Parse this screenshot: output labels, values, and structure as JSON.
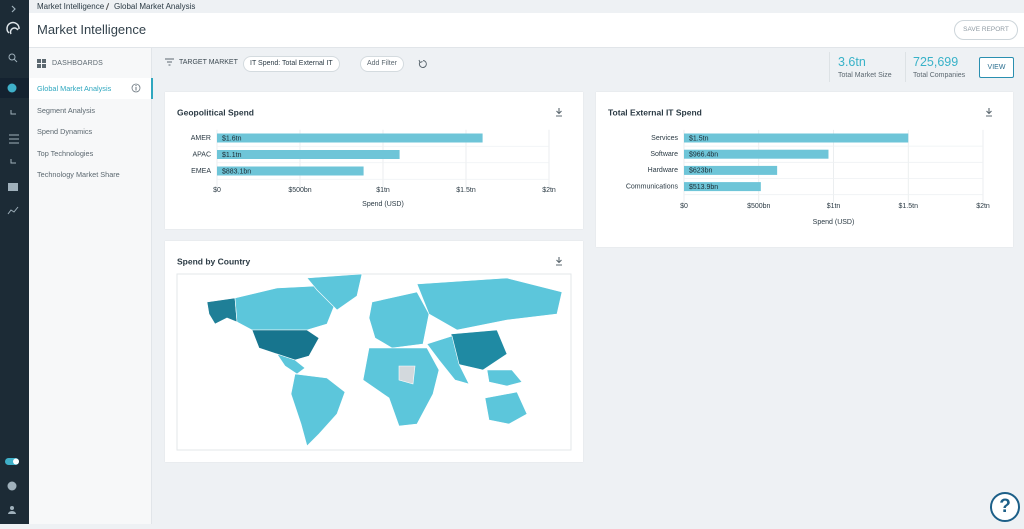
{
  "breadcrumb": [
    "Market Intelligence",
    "Global Market Analysis"
  ],
  "header": {
    "title": "Market Intelligence",
    "save_button": "SAVE REPORT"
  },
  "sidebar": {
    "heading": "DASHBOARDS",
    "items": [
      "Global Market Analysis",
      "Segment Analysis",
      "Spend Dynamics",
      "Top Technologies",
      "Technology Market Share"
    ]
  },
  "filters": {
    "label": "TARGET MARKET",
    "chip": "IT Spend: Total External IT",
    "add": "Add Filter"
  },
  "stats": [
    {
      "value": "3.6tn",
      "label": "Total Market Size"
    },
    {
      "value": "725,699",
      "label": "Total Companies"
    }
  ],
  "view_button": "VIEW",
  "help_button": "?",
  "chart_data": [
    {
      "type": "bar",
      "orientation": "horizontal",
      "title": "Geopolitical Spend",
      "categories": [
        "AMER",
        "APAC",
        "EMEA"
      ],
      "values": [
        1600000000000,
        1100000000000,
        883100000000
      ],
      "value_labels": [
        "$1.6tn",
        "$1.1tn",
        "$883.1bn"
      ],
      "color": "#6ec5d8",
      "xlabel": "Spend (USD)",
      "xlim": [
        0,
        2000000000000
      ],
      "xticks": [
        {
          "value": 0,
          "label": "$0"
        },
        {
          "value": 500000000000,
          "label": "$500bn"
        },
        {
          "value": 1000000000000,
          "label": "$1tn"
        },
        {
          "value": 1500000000000,
          "label": "$1.5tn"
        },
        {
          "value": 2000000000000,
          "label": "$2tn"
        }
      ],
      "grid": true
    },
    {
      "type": "bar",
      "orientation": "horizontal",
      "title": "Total External IT Spend",
      "categories": [
        "Services",
        "Software",
        "Hardware",
        "Communications"
      ],
      "values": [
        1500000000000,
        966400000000,
        623000000000,
        513900000000
      ],
      "value_labels": [
        "$1.5tn",
        "$966.4bn",
        "$623bn",
        "$513.9bn"
      ],
      "color": "#6ec5d8",
      "xlabel": "Spend (USD)",
      "xlim": [
        0,
        2000000000000
      ],
      "xticks": [
        {
          "value": 0,
          "label": "$0"
        },
        {
          "value": 500000000000,
          "label": "$500bn"
        },
        {
          "value": 1000000000000,
          "label": "$1tn"
        },
        {
          "value": 1500000000000,
          "label": "$1.5tn"
        },
        {
          "value": 2000000000000,
          "label": "$2tn"
        }
      ],
      "grid": true
    },
    {
      "type": "map",
      "title": "Spend by Country"
    }
  ]
}
